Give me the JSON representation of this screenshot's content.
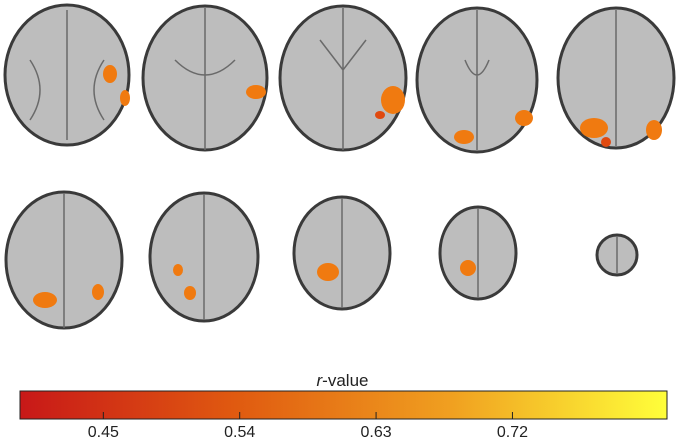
{
  "colorbar": {
    "label": "r-value",
    "range": [
      0.395,
      0.822
    ],
    "ticks": [
      0.45,
      0.54,
      0.63,
      0.72
    ],
    "colors": [
      "#c81818",
      "#e05a10",
      "#f0a020",
      "#ffff3a"
    ]
  }
}
